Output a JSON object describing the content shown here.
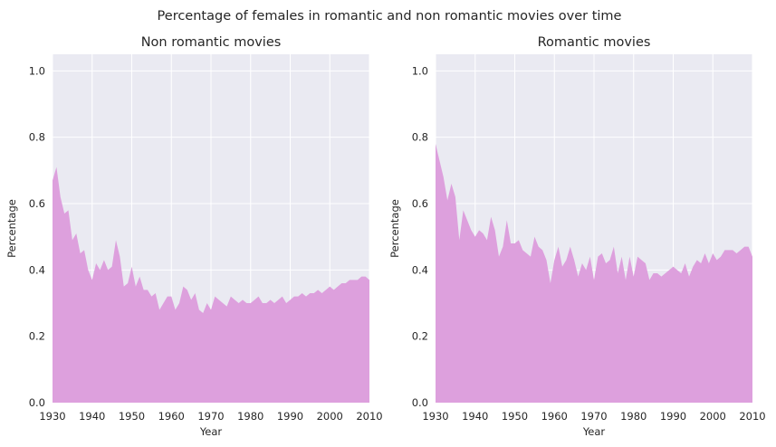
{
  "figure": {
    "suptitle": "Percentage of females in romantic and non romantic movies over time"
  },
  "colors": {
    "area_fill": "#dda0dd",
    "plot_bg": "#eaeaf2",
    "grid": "#ffffff",
    "text": "#262626"
  },
  "chart_data": [
    {
      "type": "area",
      "title": "Non romantic movies",
      "xlabel": "Year",
      "ylabel": "Percentage",
      "xlim": [
        1930,
        2010
      ],
      "ylim": [
        0,
        1.05
      ],
      "xticks": [
        1930,
        1940,
        1950,
        1960,
        1970,
        1980,
        1990,
        2000,
        2010
      ],
      "yticks": [
        0.0,
        0.2,
        0.4,
        0.6,
        0.8,
        1.0
      ],
      "ytick_labels": [
        "0.0",
        "0.2",
        "0.4",
        "0.6",
        "0.8",
        "1.0"
      ],
      "grid": true,
      "x": [
        1930,
        1931,
        1932,
        1933,
        1934,
        1935,
        1936,
        1937,
        1938,
        1939,
        1940,
        1941,
        1942,
        1943,
        1944,
        1945,
        1946,
        1947,
        1948,
        1949,
        1950,
        1951,
        1952,
        1953,
        1954,
        1955,
        1956,
        1957,
        1958,
        1959,
        1960,
        1961,
        1962,
        1963,
        1964,
        1965,
        1966,
        1967,
        1968,
        1969,
        1970,
        1971,
        1972,
        1973,
        1974,
        1975,
        1976,
        1977,
        1978,
        1979,
        1980,
        1981,
        1982,
        1983,
        1984,
        1985,
        1986,
        1987,
        1988,
        1989,
        1990,
        1991,
        1992,
        1993,
        1994,
        1995,
        1996,
        1997,
        1998,
        1999,
        2000,
        2001,
        2002,
        2003,
        2004,
        2005,
        2006,
        2007,
        2008,
        2009,
        2010
      ],
      "values": [
        0.67,
        0.71,
        0.62,
        0.57,
        0.58,
        0.49,
        0.51,
        0.45,
        0.46,
        0.4,
        0.37,
        0.42,
        0.4,
        0.43,
        0.4,
        0.41,
        0.49,
        0.44,
        0.35,
        0.36,
        0.41,
        0.35,
        0.38,
        0.34,
        0.34,
        0.32,
        0.33,
        0.28,
        0.3,
        0.32,
        0.32,
        0.28,
        0.3,
        0.35,
        0.34,
        0.31,
        0.33,
        0.28,
        0.27,
        0.3,
        0.28,
        0.32,
        0.31,
        0.3,
        0.29,
        0.32,
        0.31,
        0.3,
        0.31,
        0.3,
        0.3,
        0.31,
        0.32,
        0.3,
        0.3,
        0.31,
        0.3,
        0.31,
        0.32,
        0.3,
        0.31,
        0.32,
        0.32,
        0.33,
        0.32,
        0.33,
        0.33,
        0.34,
        0.33,
        0.34,
        0.35,
        0.34,
        0.35,
        0.36,
        0.36,
        0.37,
        0.37,
        0.37,
        0.38,
        0.38,
        0.37
      ]
    },
    {
      "type": "area",
      "title": "Romantic movies",
      "xlabel": "Year",
      "ylabel": "Percentage",
      "xlim": [
        1930,
        2010
      ],
      "ylim": [
        0,
        1.05
      ],
      "xticks": [
        1930,
        1940,
        1950,
        1960,
        1970,
        1980,
        1990,
        2000,
        2010
      ],
      "yticks": [
        0.0,
        0.2,
        0.4,
        0.6,
        0.8,
        1.0
      ],
      "ytick_labels": [
        "0.0",
        "0.2",
        "0.4",
        "0.6",
        "0.8",
        "1.0"
      ],
      "grid": true,
      "x": [
        1930,
        1931,
        1932,
        1933,
        1934,
        1935,
        1936,
        1937,
        1938,
        1939,
        1940,
        1941,
        1942,
        1943,
        1944,
        1945,
        1946,
        1947,
        1948,
        1949,
        1950,
        1951,
        1952,
        1953,
        1954,
        1955,
        1956,
        1957,
        1958,
        1959,
        1960,
        1961,
        1962,
        1963,
        1964,
        1965,
        1966,
        1967,
        1968,
        1969,
        1970,
        1971,
        1972,
        1973,
        1974,
        1975,
        1976,
        1977,
        1978,
        1979,
        1980,
        1981,
        1982,
        1983,
        1984,
        1985,
        1986,
        1987,
        1988,
        1989,
        1990,
        1991,
        1992,
        1993,
        1994,
        1995,
        1996,
        1997,
        1998,
        1999,
        2000,
        2001,
        2002,
        2003,
        2004,
        2005,
        2006,
        2007,
        2008,
        2009,
        2010
      ],
      "values": [
        0.78,
        0.73,
        0.68,
        0.61,
        0.66,
        0.62,
        0.49,
        0.58,
        0.55,
        0.52,
        0.5,
        0.52,
        0.51,
        0.49,
        0.56,
        0.52,
        0.44,
        0.47,
        0.55,
        0.48,
        0.48,
        0.49,
        0.46,
        0.45,
        0.44,
        0.5,
        0.47,
        0.46,
        0.43,
        0.36,
        0.43,
        0.47,
        0.41,
        0.43,
        0.47,
        0.43,
        0.38,
        0.42,
        0.4,
        0.44,
        0.37,
        0.44,
        0.45,
        0.42,
        0.43,
        0.47,
        0.39,
        0.44,
        0.37,
        0.44,
        0.38,
        0.44,
        0.43,
        0.42,
        0.37,
        0.39,
        0.39,
        0.38,
        0.39,
        0.4,
        0.41,
        0.4,
        0.39,
        0.42,
        0.38,
        0.41,
        0.43,
        0.42,
        0.45,
        0.42,
        0.45,
        0.43,
        0.44,
        0.46,
        0.46,
        0.46,
        0.45,
        0.46,
        0.47,
        0.47,
        0.44
      ]
    }
  ]
}
